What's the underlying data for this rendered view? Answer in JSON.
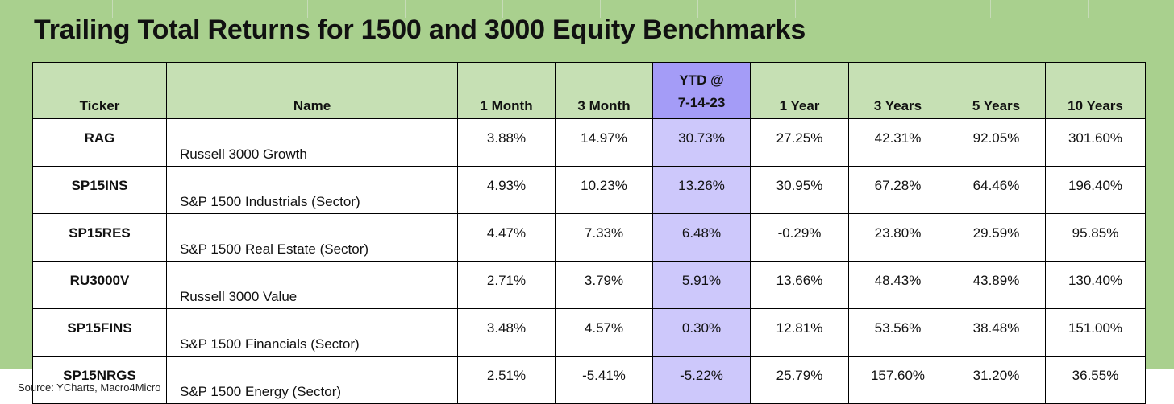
{
  "title": "Trailing Total Returns for 1500 and 3000 Equity Benchmarks",
  "columns": {
    "ticker": "Ticker",
    "name": "Name",
    "m1": "1 Month",
    "m3": "3 Month",
    "ytd_line1": "YTD @",
    "ytd_line2": "7-14-23",
    "y1": "1 Year",
    "y3": "3 Years",
    "y5": "5 Years",
    "y10": "10 Years"
  },
  "rows": [
    {
      "ticker": "RAG",
      "name": "Russell 3000 Growth",
      "m1": "3.88%",
      "m3": "14.97%",
      "ytd": "30.73%",
      "y1": "27.25%",
      "y3": "42.31%",
      "y5": "92.05%",
      "y10": "301.60%"
    },
    {
      "ticker": "SP15INS",
      "name": "S&P 1500 Industrials (Sector)",
      "m1": "4.93%",
      "m3": "10.23%",
      "ytd": "13.26%",
      "y1": "30.95%",
      "y3": "67.28%",
      "y5": "64.46%",
      "y10": "196.40%"
    },
    {
      "ticker": "SP15RES",
      "name": "S&P 1500 Real Estate (Sector)",
      "m1": "4.47%",
      "m3": "7.33%",
      "ytd": "6.48%",
      "y1": "-0.29%",
      "y3": "23.80%",
      "y5": "29.59%",
      "y10": "95.85%"
    },
    {
      "ticker": "RU3000V",
      "name": "Russell 3000 Value",
      "m1": "2.71%",
      "m3": "3.79%",
      "ytd": "5.91%",
      "y1": "13.66%",
      "y3": "48.43%",
      "y5": "43.89%",
      "y10": "130.40%"
    },
    {
      "ticker": "SP15FINS",
      "name": "S&P 1500 Financials (Sector)",
      "m1": "3.48%",
      "m3": "4.57%",
      "ytd": "0.30%",
      "y1": "12.81%",
      "y3": "53.56%",
      "y5": "38.48%",
      "y10": "151.00%"
    },
    {
      "ticker": "SP15NRGS",
      "name": "S&P 1500 Energy (Sector)",
      "m1": "2.51%",
      "m3": "-5.41%",
      "ytd": "-5.22%",
      "y1": "25.79%",
      "y3": "157.60%",
      "y5": "31.20%",
      "y10": "36.55%"
    }
  ],
  "source": "Source: YCharts, Macro4Micro",
  "colors": {
    "panel_green": "#a9d08e",
    "header_green": "#c6e0b4",
    "ytd_header_purple": "#a49cf7",
    "ytd_cell_purple": "#cdc8fb"
  }
}
